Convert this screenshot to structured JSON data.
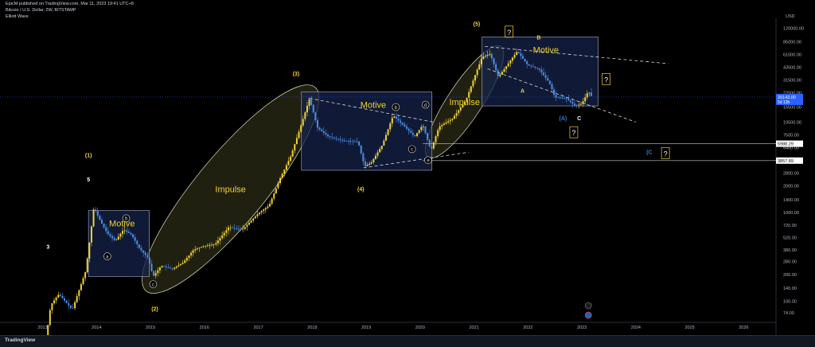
{
  "header": {
    "published_line": "EpicM published on TradingView.com, Mar 11, 2023 19:41 UTC+8",
    "symbol_line": "Bitcoin / U.S. Dollar, 2W, BITSTAMP",
    "indicator": "Elliott Wave"
  },
  "footer": {
    "brand": "TradingView"
  },
  "colors": {
    "background": "#000000",
    "candle_up": "#f2d230",
    "candle_down": "#4a8fe8",
    "zone_fill": "#16234a",
    "zone_stroke": "#a8b4d0",
    "ellipse_fill": "#3a3a1f",
    "ellipse_stroke": "#c9c5a6",
    "wave_label": "#f2d230",
    "corrective_label": "#2d7fe0",
    "price_tag": "#2962ff"
  },
  "chart_data": {
    "type": "candlestick",
    "title": "Bitcoin / U.S. Dollar, 2W, BITSTAMP",
    "y_axis": {
      "unit": "USD",
      "scale": "log",
      "ticks": [
        120000,
        85000,
        61000,
        43500,
        31500,
        22500,
        15500,
        10500,
        7500,
        5400,
        3800,
        2800,
        2000,
        1400,
        1000,
        720,
        520,
        380,
        280,
        200,
        140,
        100,
        74
      ]
    },
    "x_axis": {
      "ticks": [
        "2013",
        "2014",
        "2015",
        "2016",
        "2017",
        "2018",
        "2019",
        "2020",
        "2021",
        "2022",
        "2023",
        "2024",
        "2025",
        "2026"
      ]
    },
    "price_series": [
      {
        "t": 2013.0,
        "p": 20
      },
      {
        "t": 2013.15,
        "p": 90
      },
      {
        "t": 2013.3,
        "p": 120
      },
      {
        "t": 2013.55,
        "p": 80
      },
      {
        "t": 2013.8,
        "p": 220
      },
      {
        "t": 2013.9,
        "p": 650
      },
      {
        "t": 2013.95,
        "p": 1150
      },
      {
        "t": 2014.05,
        "p": 850
      },
      {
        "t": 2014.2,
        "p": 580
      },
      {
        "t": 2014.35,
        "p": 480
      },
      {
        "t": 2014.5,
        "p": 640
      },
      {
        "t": 2014.65,
        "p": 560
      },
      {
        "t": 2014.8,
        "p": 390
      },
      {
        "t": 2014.95,
        "p": 310
      },
      {
        "t": 2015.05,
        "p": 190
      },
      {
        "t": 2015.2,
        "p": 250
      },
      {
        "t": 2015.4,
        "p": 230
      },
      {
        "t": 2015.6,
        "p": 270
      },
      {
        "t": 2015.8,
        "p": 380
      },
      {
        "t": 2016.0,
        "p": 420
      },
      {
        "t": 2016.2,
        "p": 440
      },
      {
        "t": 2016.45,
        "p": 680
      },
      {
        "t": 2016.7,
        "p": 640
      },
      {
        "t": 2017.0,
        "p": 980
      },
      {
        "t": 2017.2,
        "p": 1200
      },
      {
        "t": 2017.4,
        "p": 2400
      },
      {
        "t": 2017.6,
        "p": 4300
      },
      {
        "t": 2017.8,
        "p": 10000
      },
      {
        "t": 2017.95,
        "p": 19500
      },
      {
        "t": 2018.1,
        "p": 9000
      },
      {
        "t": 2018.3,
        "p": 7200
      },
      {
        "t": 2018.55,
        "p": 6500
      },
      {
        "t": 2018.85,
        "p": 6300
      },
      {
        "t": 2018.97,
        "p": 3300
      },
      {
        "t": 2019.1,
        "p": 3700
      },
      {
        "t": 2019.3,
        "p": 5800
      },
      {
        "t": 2019.5,
        "p": 12500
      },
      {
        "t": 2019.7,
        "p": 9500
      },
      {
        "t": 2019.9,
        "p": 7200
      },
      {
        "t": 2020.05,
        "p": 9800
      },
      {
        "t": 2020.2,
        "p": 5000
      },
      {
        "t": 2020.35,
        "p": 9300
      },
      {
        "t": 2020.6,
        "p": 11500
      },
      {
        "t": 2020.85,
        "p": 18500
      },
      {
        "t": 2021.0,
        "p": 33000
      },
      {
        "t": 2021.15,
        "p": 57000
      },
      {
        "t": 2021.3,
        "p": 62000
      },
      {
        "t": 2021.45,
        "p": 34000
      },
      {
        "t": 2021.6,
        "p": 45000
      },
      {
        "t": 2021.8,
        "p": 66000
      },
      {
        "t": 2022.0,
        "p": 46000
      },
      {
        "t": 2022.2,
        "p": 42000
      },
      {
        "t": 2022.4,
        "p": 29000
      },
      {
        "t": 2022.5,
        "p": 20000
      },
      {
        "t": 2022.7,
        "p": 19500
      },
      {
        "t": 2022.88,
        "p": 16000
      },
      {
        "t": 2023.0,
        "p": 17000
      },
      {
        "t": 2023.12,
        "p": 23500
      },
      {
        "t": 2023.19,
        "p": 20000
      }
    ],
    "price_tags": [
      {
        "price": 20143,
        "line1": "20143.00",
        "line2": "5d 13h"
      },
      {
        "price": 5988.29,
        "line1": "5988.29"
      },
      {
        "price": 3857.89,
        "line1": "3857.89"
      }
    ],
    "zones": [
      {
        "t0": 2013.85,
        "t1": 2014.98,
        "p_high": 1050,
        "p_low": 190,
        "label": "Motive"
      },
      {
        "t0": 2017.8,
        "t1": 2020.22,
        "p_high": 23000,
        "p_low": 3000,
        "label": "Motive"
      },
      {
        "t0": 2021.15,
        "t1": 2023.3,
        "p_high": 96000,
        "p_low": 16000,
        "label": "Motive"
      }
    ],
    "ellipses": [
      {
        "t0": 2014.92,
        "t1": 2018.05,
        "p_low": 130,
        "p_high": 26000,
        "label": "Impulse"
      },
      {
        "t0": 2020.15,
        "t1": 2021.5,
        "p_low": 4200,
        "p_high": 75000,
        "label": "Impulse"
      }
    ],
    "wave_labels": [
      {
        "t": 2013.1,
        "p": 390,
        "text": "3",
        "color": "#ffffff"
      },
      {
        "t": 2013.85,
        "p": 2250,
        "text": "5",
        "color": "#ffffff"
      },
      {
        "t": 2013.85,
        "p": 4200,
        "text": "(1)",
        "color": "#f2d230"
      },
      {
        "t": 2015.08,
        "p": 78,
        "text": "(2)",
        "color": "#f2d230"
      },
      {
        "t": 2017.7,
        "p": 35000,
        "text": "(3)",
        "color": "#f2d230"
      },
      {
        "t": 2018.9,
        "p": 1750,
        "text": "(4)",
        "color": "#f2d230"
      },
      {
        "t": 2021.05,
        "p": 128000,
        "text": "(5)",
        "color": "#f2d230"
      },
      {
        "t": 2021.9,
        "p": 22500,
        "text": "A",
        "color": "#f2d230"
      },
      {
        "t": 2022.2,
        "p": 90000,
        "text": "B",
        "color": "#f2d230"
      },
      {
        "t": 2022.65,
        "p": 11000,
        "text": "(A)",
        "color": "#2d7fe0"
      },
      {
        "t": 2022.95,
        "p": 11000,
        "text": "C",
        "color": "#ffffff"
      },
      {
        "t": 2024.25,
        "p": 4600,
        "text": "(C",
        "color": "#2d7fe0"
      }
    ],
    "circle_labels": [
      {
        "t": 2014.2,
        "p": 320,
        "text": "a"
      },
      {
        "t": 2014.55,
        "p": 860,
        "text": "b"
      },
      {
        "t": 2015.05,
        "p": 155,
        "text": "c"
      },
      {
        "t": 2019.55,
        "p": 15500,
        "text": "b"
      },
      {
        "t": 2019.85,
        "p": 5200,
        "text": "c"
      },
      {
        "t": 2020.1,
        "p": 16500,
        "text": "d"
      },
      {
        "t": 2020.15,
        "p": 3900,
        "text": "e"
      }
    ],
    "question_marks": [
      {
        "t": 2021.65,
        "p": 108000,
        "text": "?"
      },
      {
        "t": 2023.45,
        "p": 31500,
        "text": "?"
      },
      {
        "t": 2022.85,
        "p": 7900,
        "text": "?"
      },
      {
        "t": 2024.55,
        "p": 4600,
        "text": "?"
      }
    ],
    "trend_lines": [
      {
        "t0": 2017.95,
        "p0": 19500,
        "t1": 2020.25,
        "p1": 10500,
        "dash": true
      },
      {
        "t0": 2018.95,
        "p0": 3200,
        "t1": 2020.9,
        "p1": 4800,
        "dash": true
      },
      {
        "t0": 2021.2,
        "p0": 75000,
        "t1": 2024.6,
        "p1": 48000,
        "dash": true
      },
      {
        "t0": 2021.25,
        "p0": 42000,
        "t1": 2024.0,
        "p1": 10500,
        "dash": true
      }
    ]
  }
}
